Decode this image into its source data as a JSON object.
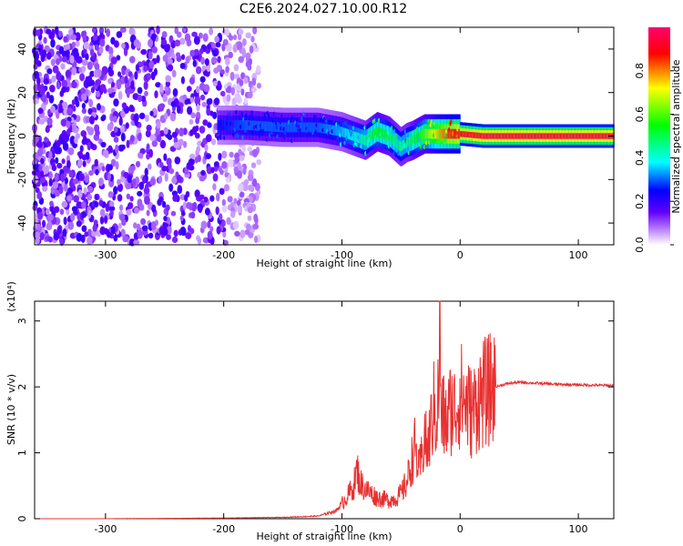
{
  "title": "C2E6.2024.027.10.00.R12",
  "chart_data": [
    {
      "type": "heatmap",
      "xlabel": "Height of straight line (km)",
      "ylabel": "Frequency (Hz)",
      "xlim": [
        -360,
        130
      ],
      "ylim": [
        -50,
        50
      ],
      "xticks": [
        -300,
        -200,
        -100,
        0,
        100
      ],
      "yticks": [
        -40,
        -20,
        0,
        20,
        40
      ],
      "colorbar": {
        "label": "Normalized spectral amplitude",
        "range": [
          0.0,
          1.0
        ],
        "ticks": [
          0.0,
          0.2,
          0.4,
          0.6,
          0.8
        ],
        "colors": [
          "#ffffff",
          "#8800ff",
          "#0000ff",
          "#00ffff",
          "#00ff00",
          "#ffff00",
          "#ff0000",
          "#ff0088"
        ]
      },
      "noise_region": {
        "x_range": [
          -360,
          -170
        ],
        "freq_range": [
          -50,
          50
        ],
        "amplitude": 0.12
      },
      "signal_track": {
        "x": [
          -205,
          -180,
          -150,
          -120,
          -100,
          -90,
          -80,
          -70,
          -60,
          -50,
          -45,
          -40,
          -30,
          -20,
          -10,
          0,
          20,
          60,
          130
        ],
        "freq": [
          5,
          5,
          4,
          4,
          2,
          0,
          -2,
          2,
          0,
          -5,
          -3,
          -2,
          1,
          1,
          1,
          1,
          0,
          0,
          0
        ],
        "amplitude": [
          0.25,
          0.3,
          0.3,
          0.3,
          0.35,
          0.4,
          0.45,
          0.55,
          0.5,
          0.45,
          0.45,
          0.5,
          0.6,
          0.75,
          0.85,
          0.9,
          0.95,
          0.95,
          0.95
        ]
      }
    },
    {
      "type": "line",
      "xlabel": "Height of straight line (km)",
      "ylabel": "SNR (10 * v/v)",
      "multiplier": "(x10⁴)",
      "xlim": [
        -360,
        130
      ],
      "ylim": [
        0,
        3.3
      ],
      "xticks": [
        -300,
        -200,
        -100,
        0,
        100
      ],
      "yticks": [
        0,
        1,
        2,
        3
      ],
      "series": [
        {
          "color": "#e83030",
          "x": [
            -360,
            -300,
            -200,
            -150,
            -120,
            -105,
            -95,
            -90,
            -87,
            -85,
            -80,
            -75,
            -70,
            -65,
            -60,
            -55,
            -50,
            -45,
            -42,
            -38,
            -35,
            -32,
            -30,
            -28,
            -25,
            -22,
            -20,
            -18,
            -17,
            -16,
            -15,
            -12,
            -10,
            -8,
            -5,
            -2,
            0,
            5,
            10,
            15,
            20,
            25,
            30,
            40,
            50,
            60,
            80,
            100,
            130
          ],
          "y": [
            0.0,
            0.0,
            0.01,
            0.02,
            0.04,
            0.12,
            0.35,
            0.5,
            0.75,
            0.55,
            0.45,
            0.38,
            0.32,
            0.3,
            0.28,
            0.3,
            0.38,
            0.55,
            0.8,
            1.1,
            0.7,
            0.95,
            1.3,
            1.0,
            1.35,
            1.7,
            1.5,
            2.0,
            3.3,
            1.2,
            1.6,
            1.45,
            1.55,
            1.7,
            1.65,
            1.75,
            1.9,
            1.75,
            1.6,
            1.8,
            1.9,
            1.95,
            2.0,
            2.05,
            2.07,
            2.06,
            2.04,
            2.03,
            2.02
          ]
        }
      ]
    }
  ]
}
